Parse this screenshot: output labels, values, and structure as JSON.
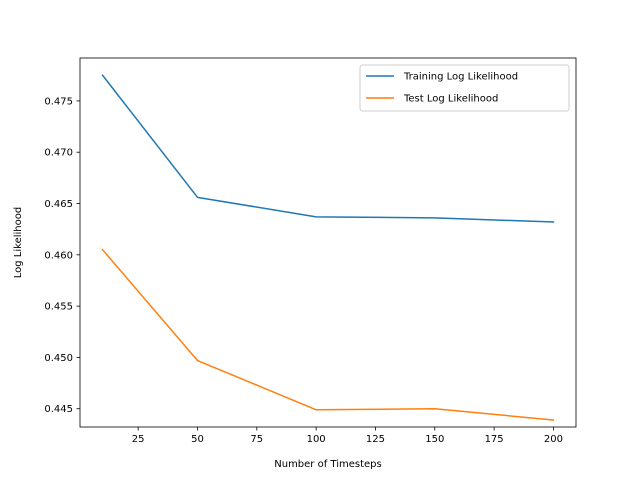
{
  "chart_data": {
    "type": "line",
    "title": "",
    "xlabel": "Number of Timesteps",
    "ylabel": "Log Likelihood",
    "x": [
      10,
      50,
      100,
      150,
      200
    ],
    "series": [
      {
        "name": "Training Log Likelihood",
        "color": "#1f77b4",
        "values": [
          0.4775,
          0.4656,
          0.4637,
          0.4636,
          0.4632
        ]
      },
      {
        "name": "Test Log Likelihood",
        "color": "#ff7f0e",
        "values": [
          0.4605,
          0.4497,
          0.4449,
          0.445,
          0.4439
        ]
      }
    ],
    "xlim": [
      0.5,
      209.5
    ],
    "ylim": [
      0.44322,
      0.47918
    ],
    "xticks": [
      25,
      50,
      75,
      100,
      125,
      150,
      175,
      200
    ],
    "yticks": [
      0.445,
      0.45,
      0.455,
      0.46,
      0.465,
      0.47,
      0.475
    ],
    "xtick_labels": [
      "25",
      "50",
      "75",
      "100",
      "125",
      "150",
      "175",
      "200"
    ],
    "ytick_labels": [
      "0.445",
      "0.450",
      "0.455",
      "0.460",
      "0.465",
      "0.470",
      "0.475"
    ],
    "grid": false,
    "legend_position": "top-right"
  }
}
